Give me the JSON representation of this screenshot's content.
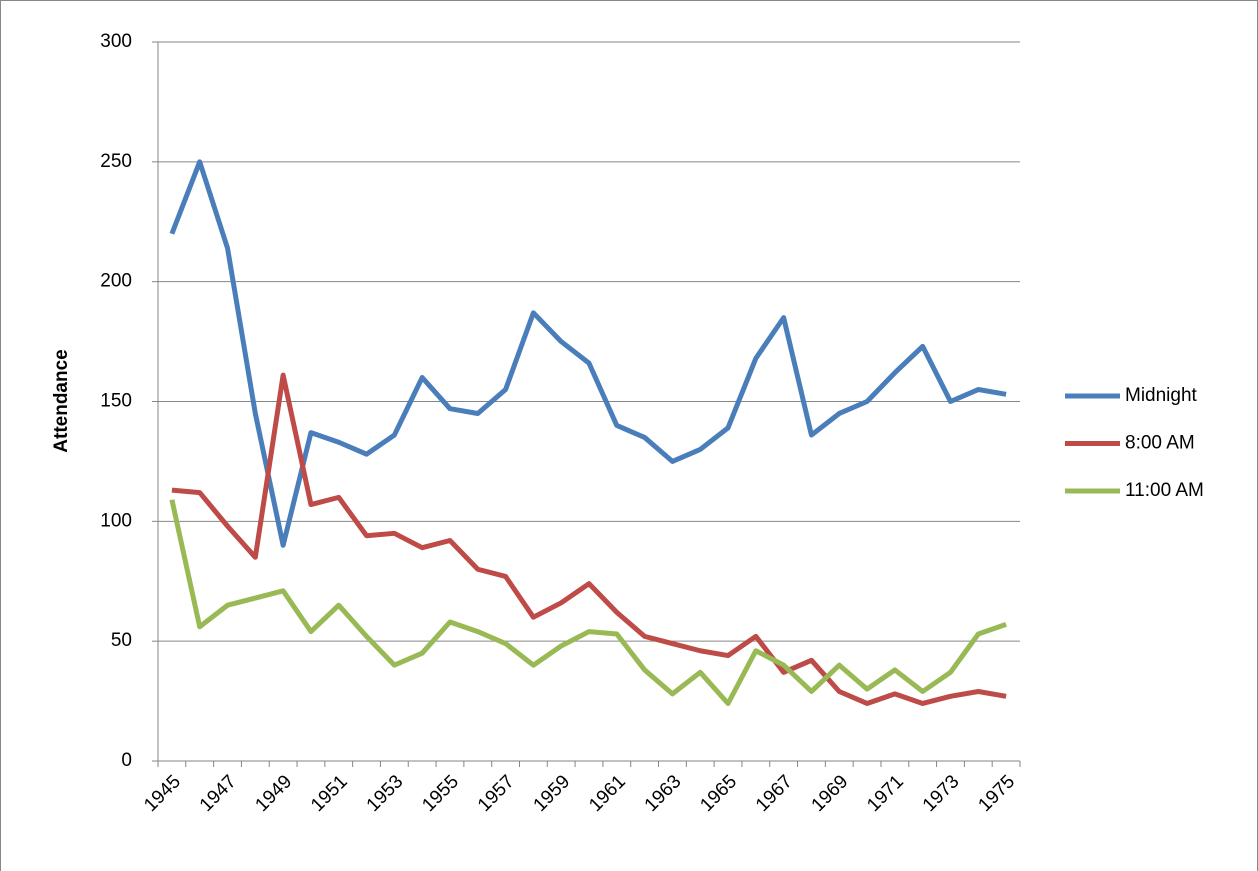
{
  "chart_data": {
    "type": "line",
    "y_label": "Attendance",
    "categories": [
      "1945",
      null,
      "1947",
      null,
      "1949",
      null,
      "1951",
      null,
      "1953",
      null,
      "1955",
      null,
      "1957",
      null,
      "1959",
      null,
      "1961",
      null,
      "1963",
      null,
      "1965",
      null,
      "1967",
      null,
      "1969",
      null,
      "1971",
      null,
      "1973",
      null,
      "1975"
    ],
    "series": [
      {
        "name": "Midnight",
        "color": "#4a7ebb",
        "values": [
          220,
          250,
          214,
          145,
          90,
          137,
          133,
          128,
          136,
          160,
          147,
          145,
          155,
          187,
          175,
          166,
          140,
          135,
          125,
          130,
          139,
          168,
          185,
          136,
          145,
          150,
          162,
          173,
          150,
          155,
          153
        ]
      },
      {
        "name": "8:00 AM",
        "color": "#be4b48",
        "values": [
          113,
          112,
          98,
          85,
          161,
          107,
          110,
          94,
          95,
          89,
          92,
          80,
          77,
          60,
          66,
          74,
          62,
          52,
          49,
          46,
          44,
          52,
          37,
          42,
          29,
          24,
          28,
          24,
          27,
          29,
          27
        ]
      },
      {
        "name": "11:00 AM",
        "color": "#98b954",
        "values": [
          109,
          56,
          65,
          68,
          71,
          54,
          65,
          52,
          40,
          45,
          58,
          54,
          49,
          40,
          48,
          54,
          53,
          38,
          28,
          37,
          24,
          46,
          40,
          29,
          40,
          30,
          38,
          29,
          37,
          53,
          57
        ]
      }
    ],
    "ylim": [
      0,
      300
    ],
    "yticks": [
      0,
      50,
      100,
      150,
      200,
      250,
      300
    ],
    "grid": true,
    "legend": "right"
  }
}
